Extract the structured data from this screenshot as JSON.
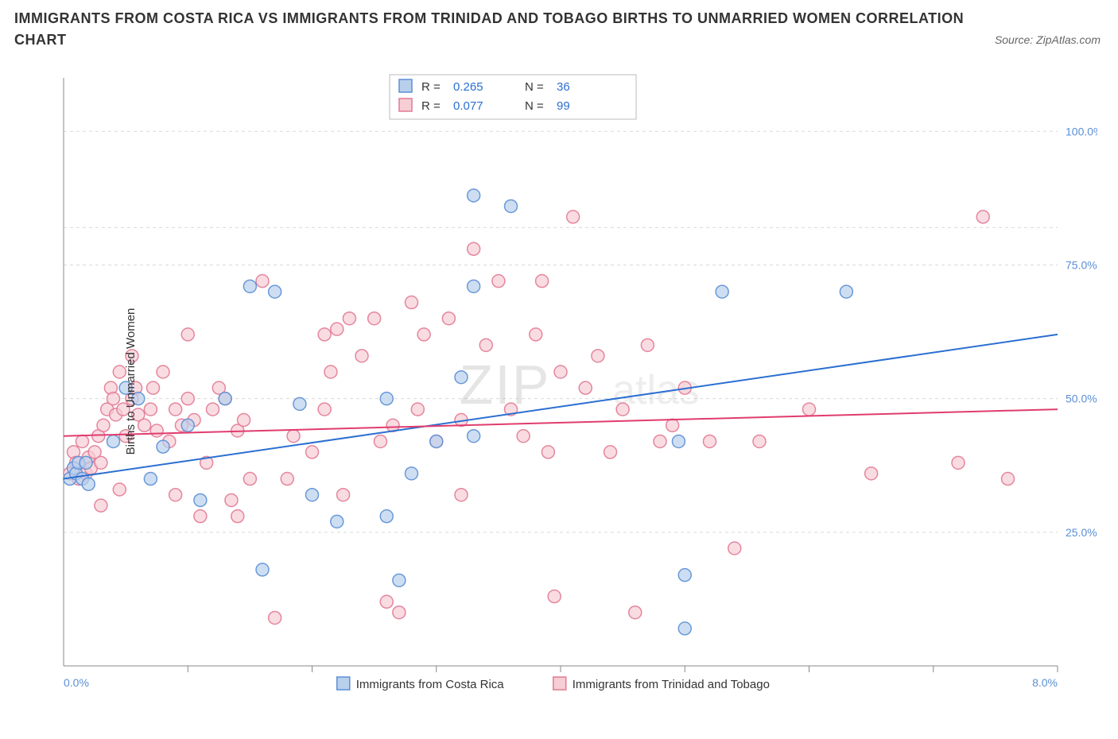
{
  "title": "IMMIGRANTS FROM COSTA RICA VS IMMIGRANTS FROM TRINIDAD AND TOBAGO BIRTHS TO UNMARRIED WOMEN CORRELATION CHART",
  "source_prefix": "Source: ",
  "source": "ZipAtlas.com",
  "watermark1": "ZIP",
  "watermark2": "atlas",
  "ylabel": "Births to Unmarried Women",
  "chart": {
    "type": "scatter",
    "xlim": [
      0,
      8
    ],
    "ylim": [
      0,
      110
    ],
    "x_ticks": [
      1,
      2,
      3,
      4,
      5,
      6,
      7,
      8
    ],
    "x_labels_shown": {
      "0": "0.0%",
      "8": "8.0%"
    },
    "y_ticks": [
      25,
      50,
      75,
      100
    ],
    "y_labels": [
      "25.0%",
      "50.0%",
      "75.0%",
      "100.0%"
    ],
    "background_color": "#ffffff",
    "grid_color": "#d9d9d9",
    "axis_color": "#888888",
    "tick_label_color": "#5b8fd6",
    "marker_radius": 8,
    "marker_stroke_width": 1.5,
    "line_width": 2,
    "series": [
      {
        "name": "Immigrants from Costa Rica",
        "fill": "#b9d0ec",
        "stroke": "#5b8fd6",
        "line_color": "#2b6fd1",
        "R": "0.265",
        "N": "36",
        "regression": {
          "x1": 0,
          "y1": 35,
          "x2": 8,
          "y2": 62
        },
        "points": [
          [
            0.05,
            35
          ],
          [
            0.08,
            37
          ],
          [
            0.1,
            36
          ],
          [
            0.12,
            38
          ],
          [
            0.15,
            35
          ],
          [
            0.18,
            38
          ],
          [
            0.2,
            34
          ],
          [
            0.4,
            42
          ],
          [
            0.5,
            52
          ],
          [
            0.8,
            41
          ],
          [
            1.0,
            45
          ],
          [
            1.1,
            31
          ],
          [
            1.5,
            71
          ],
          [
            1.6,
            18
          ],
          [
            1.7,
            70
          ],
          [
            1.9,
            49
          ],
          [
            2.2,
            27
          ],
          [
            2.0,
            32
          ],
          [
            2.6,
            28
          ],
          [
            2.7,
            16
          ],
          [
            2.8,
            36
          ],
          [
            2.6,
            50
          ],
          [
            3.3,
            88
          ],
          [
            3.3,
            71
          ],
          [
            3.3,
            43
          ],
          [
            3.2,
            54
          ],
          [
            5.3,
            70
          ],
          [
            5.0,
            17
          ],
          [
            5.0,
            7
          ],
          [
            3.6,
            86
          ],
          [
            4.95,
            42
          ],
          [
            6.3,
            70
          ],
          [
            0.6,
            50
          ],
          [
            0.7,
            35
          ],
          [
            1.3,
            50
          ],
          [
            3.0,
            42
          ]
        ]
      },
      {
        "name": "Immigrants from Trinidad and Tobago",
        "fill": "#f7cdd6",
        "stroke": "#e27a93",
        "line_color": "#e03c6e",
        "R": "0.077",
        "N": "99",
        "regression": {
          "x1": 0,
          "y1": 43,
          "x2": 8,
          "y2": 48
        },
        "points": [
          [
            0.05,
            36
          ],
          [
            0.08,
            40
          ],
          [
            0.1,
            38
          ],
          [
            0.12,
            35
          ],
          [
            0.15,
            42
          ],
          [
            0.18,
            36
          ],
          [
            0.2,
            39
          ],
          [
            0.22,
            37
          ],
          [
            0.25,
            40
          ],
          [
            0.28,
            43
          ],
          [
            0.3,
            38
          ],
          [
            0.32,
            45
          ],
          [
            0.35,
            48
          ],
          [
            0.38,
            52
          ],
          [
            0.4,
            50
          ],
          [
            0.42,
            47
          ],
          [
            0.45,
            55
          ],
          [
            0.48,
            48
          ],
          [
            0.5,
            43
          ],
          [
            0.55,
            50
          ],
          [
            0.58,
            52
          ],
          [
            0.6,
            47
          ],
          [
            0.65,
            45
          ],
          [
            0.7,
            48
          ],
          [
            0.72,
            52
          ],
          [
            0.75,
            44
          ],
          [
            0.8,
            55
          ],
          [
            0.85,
            42
          ],
          [
            0.9,
            48
          ],
          [
            0.95,
            45
          ],
          [
            1.0,
            50
          ],
          [
            1.05,
            46
          ],
          [
            1.1,
            28
          ],
          [
            1.15,
            38
          ],
          [
            1.2,
            48
          ],
          [
            1.25,
            52
          ],
          [
            1.3,
            50
          ],
          [
            1.35,
            31
          ],
          [
            1.4,
            44
          ],
          [
            1.45,
            46
          ],
          [
            1.5,
            35
          ],
          [
            1.6,
            72
          ],
          [
            1.7,
            9
          ],
          [
            1.8,
            35
          ],
          [
            1.85,
            43
          ],
          [
            2.0,
            40
          ],
          [
            2.1,
            62
          ],
          [
            2.15,
            55
          ],
          [
            2.2,
            63
          ],
          [
            2.25,
            32
          ],
          [
            2.3,
            65
          ],
          [
            2.4,
            58
          ],
          [
            2.5,
            65
          ],
          [
            2.55,
            42
          ],
          [
            2.6,
            12
          ],
          [
            2.65,
            45
          ],
          [
            2.7,
            10
          ],
          [
            2.8,
            68
          ],
          [
            2.85,
            48
          ],
          [
            2.9,
            62
          ],
          [
            3.0,
            42
          ],
          [
            3.1,
            65
          ],
          [
            3.2,
            46
          ],
          [
            3.3,
            78
          ],
          [
            3.4,
            60
          ],
          [
            3.5,
            72
          ],
          [
            3.6,
            48
          ],
          [
            3.7,
            43
          ],
          [
            3.8,
            62
          ],
          [
            3.85,
            72
          ],
          [
            3.9,
            40
          ],
          [
            3.95,
            13
          ],
          [
            4.0,
            55
          ],
          [
            4.1,
            84
          ],
          [
            4.2,
            52
          ],
          [
            4.3,
            58
          ],
          [
            4.4,
            40
          ],
          [
            4.5,
            48
          ],
          [
            4.6,
            10
          ],
          [
            4.7,
            60
          ],
          [
            4.8,
            42
          ],
          [
            4.9,
            45
          ],
          [
            5.0,
            52
          ],
          [
            5.2,
            42
          ],
          [
            5.4,
            22
          ],
          [
            5.6,
            42
          ],
          [
            6.0,
            48
          ],
          [
            6.5,
            36
          ],
          [
            7.2,
            38
          ],
          [
            7.4,
            84
          ],
          [
            7.6,
            35
          ],
          [
            1.0,
            62
          ],
          [
            0.3,
            30
          ],
          [
            0.45,
            33
          ],
          [
            0.9,
            32
          ],
          [
            1.4,
            28
          ],
          [
            2.1,
            48
          ],
          [
            3.2,
            32
          ],
          [
            0.55,
            58
          ]
        ]
      }
    ]
  },
  "legend_top": {
    "R_label": "R =",
    "N_label": "N ="
  },
  "legend_bottom": [
    {
      "swatch_fill": "#b9d0ec",
      "swatch_stroke": "#5b8fd6",
      "label": "Immigrants from Costa Rica"
    },
    {
      "swatch_fill": "#f7cdd6",
      "swatch_stroke": "#e27a93",
      "label": "Immigrants from Trinidad and Tobago"
    }
  ]
}
